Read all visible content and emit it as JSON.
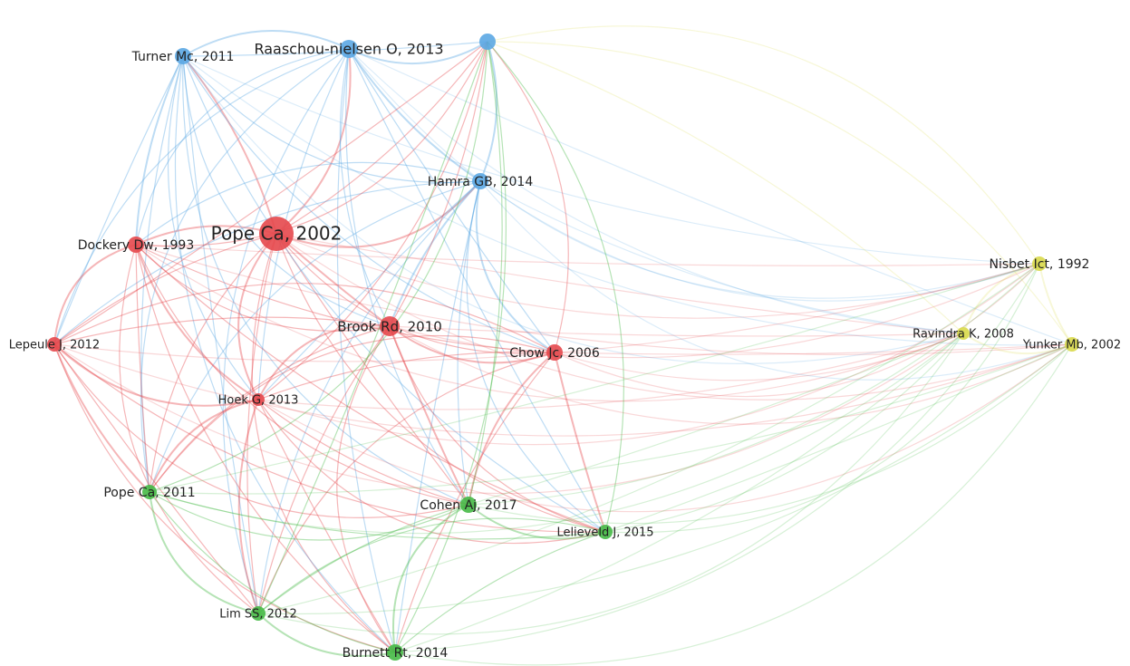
{
  "colors": {
    "red": "#e5484d",
    "blue": "#5ba7e3",
    "green": "#46b946",
    "yellow": "#d9d94a"
  },
  "nodes": [
    {
      "label": "Pope Ca, 2002",
      "cluster": "red"
    },
    {
      "label": "Raaschou-nielsen O, 2013",
      "cluster": "blue"
    },
    {
      "label": "Turner Mc, 2011",
      "cluster": "blue"
    },
    {
      "label": "Hamra GB, 2014",
      "cluster": "blue"
    },
    {
      "label": "Dockery Dw, 1993",
      "cluster": "red"
    },
    {
      "label": "Brook Rd, 2010",
      "cluster": "red"
    },
    {
      "label": "Chow Jc, 2006",
      "cluster": "red"
    },
    {
      "label": "Lepeule J, 2012",
      "cluster": "red"
    },
    {
      "label": "Hoek G, 2013",
      "cluster": "red"
    },
    {
      "label": "Pope Ca, 2011",
      "cluster": "green"
    },
    {
      "label": "Cohen Aj, 2017",
      "cluster": "green"
    },
    {
      "label": "Lelieveld J, 2015",
      "cluster": "green"
    },
    {
      "label": "Lim SS, 2012",
      "cluster": "green"
    },
    {
      "label": "Burnett Rt, 2014",
      "cluster": "green"
    },
    {
      "label": "Nisbet Ict, 1992",
      "cluster": "yellow"
    },
    {
      "label": "Ravindra K, 2008",
      "cluster": "yellow"
    },
    {
      "label": "Yunker Mb, 2002",
      "cluster": "yellow"
    }
  ]
}
